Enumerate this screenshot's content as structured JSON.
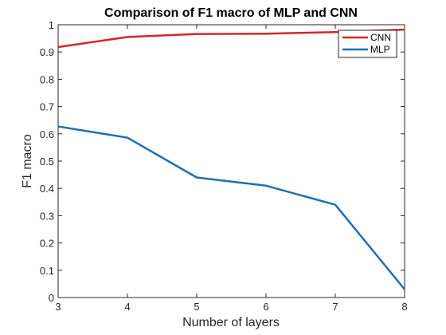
{
  "chart_data": {
    "type": "line",
    "title": "Comparison of F1 macro of MLP and CNN",
    "xlabel": "Number of layers",
    "ylabel": "F1 macro",
    "x": [
      3,
      4,
      5,
      6,
      7,
      8
    ],
    "xlim": [
      3,
      8
    ],
    "ylim": [
      0,
      1
    ],
    "xticks": [
      "3",
      "4",
      "5",
      "6",
      "7",
      "8"
    ],
    "yticks": [
      "0",
      "0.1",
      "0.2",
      "0.3",
      "0.4",
      "0.5",
      "0.6",
      "0.7",
      "0.8",
      "0.9",
      "1"
    ],
    "grid": false,
    "legend_position": "top-right",
    "series": [
      {
        "name": "CNN",
        "color": "#d62728",
        "values": [
          0.918,
          0.955,
          0.966,
          0.967,
          0.973,
          0.982
        ]
      },
      {
        "name": "MLP",
        "color": "#1f6fb4",
        "values": [
          0.627,
          0.586,
          0.44,
          0.41,
          0.34,
          0.03
        ]
      }
    ]
  }
}
